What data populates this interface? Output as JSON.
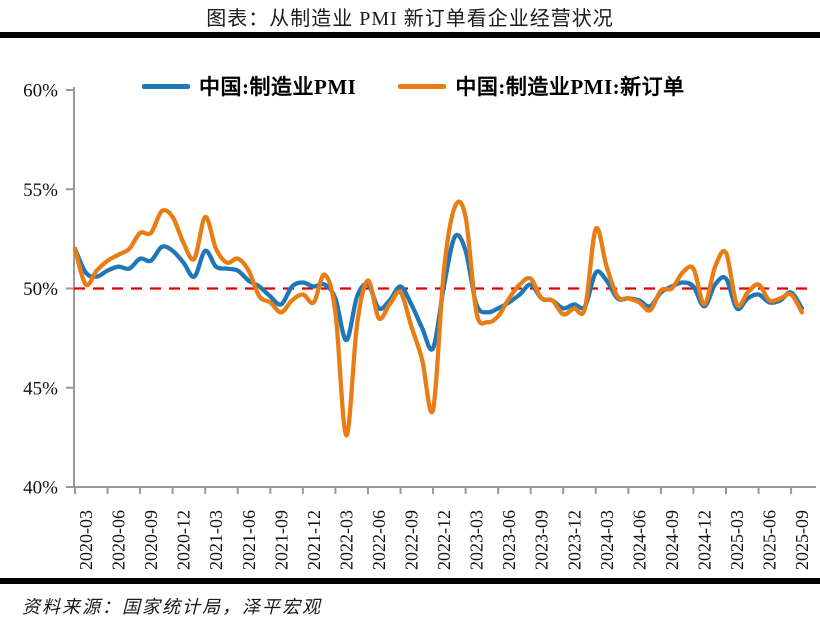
{
  "header": {
    "title": "图表：从制造业 PMI 新订单看企业经营状况"
  },
  "footer": {
    "source": "资料来源：国家统计局，泽平宏观"
  },
  "colors": {
    "pmi_blue": "#1F77B8",
    "new_orders_orange": "#E87D16",
    "reference_red": "#E00000",
    "axis_gray": "#999999",
    "rule_black": "#000000"
  },
  "chart_data": {
    "type": "line",
    "title": "图表：从制造业 PMI 新订单看企业经营状况",
    "xlabel": "",
    "ylabel": "",
    "ylim": [
      40,
      60
    ],
    "y_ticks": [
      {
        "value": 60,
        "label": "60%"
      },
      {
        "value": 55,
        "label": "55%"
      },
      {
        "value": 50,
        "label": "50%"
      },
      {
        "value": 45,
        "label": "45%"
      },
      {
        "value": 40,
        "label": "40%"
      }
    ],
    "x_tick_labels": [
      "2020-03",
      "2020-06",
      "2020-09",
      "2020-12",
      "2021-03",
      "2021-06",
      "2021-09",
      "2021-12",
      "2022-03",
      "2022-06",
      "2022-09",
      "2022-12",
      "2023-03",
      "2023-06",
      "2023-09",
      "2023-12",
      "2024-03",
      "2024-06",
      "2024-09",
      "2024-12",
      "2025-03",
      "2025-06",
      "2025-09"
    ],
    "x": [
      "2020-03",
      "2020-04",
      "2020-05",
      "2020-06",
      "2020-07",
      "2020-08",
      "2020-09",
      "2020-10",
      "2020-11",
      "2020-12",
      "2021-01",
      "2021-02",
      "2021-03",
      "2021-04",
      "2021-05",
      "2021-06",
      "2021-07",
      "2021-08",
      "2021-09",
      "2021-10",
      "2021-11",
      "2021-12",
      "2022-01",
      "2022-02",
      "2022-03",
      "2022-04",
      "2022-05",
      "2022-06",
      "2022-07",
      "2022-08",
      "2022-09",
      "2022-10",
      "2022-11",
      "2022-12",
      "2023-01",
      "2023-02",
      "2023-03",
      "2023-04",
      "2023-05",
      "2023-06",
      "2023-07",
      "2023-08",
      "2023-09",
      "2023-10",
      "2023-11",
      "2023-12",
      "2024-01",
      "2024-02",
      "2024-03",
      "2024-04",
      "2024-05",
      "2024-06",
      "2024-07",
      "2024-08",
      "2024-09",
      "2024-10",
      "2024-11",
      "2024-12",
      "2025-01",
      "2025-02",
      "2025-03",
      "2025-04",
      "2025-05",
      "2025-06",
      "2025-07",
      "2025-08",
      "2025-09",
      "2025-10"
    ],
    "reference_line": {
      "value": 50,
      "style": "dashed",
      "color": "#E00000"
    },
    "legend_position": "top",
    "grid": false,
    "series": [
      {
        "name": "中国:制造业PMI",
        "color": "#1F77B8",
        "values": [
          52.0,
          50.8,
          50.6,
          50.9,
          51.1,
          51.0,
          51.5,
          51.4,
          52.1,
          51.9,
          51.3,
          50.6,
          51.9,
          51.1,
          51.0,
          50.9,
          50.4,
          50.1,
          49.6,
          49.2,
          50.1,
          50.3,
          50.1,
          50.2,
          49.5,
          47.4,
          49.6,
          50.2,
          49.0,
          49.4,
          50.1,
          49.2,
          48.0,
          47.0,
          50.1,
          52.6,
          51.9,
          49.2,
          48.8,
          49.0,
          49.3,
          49.7,
          50.2,
          49.5,
          49.4,
          49.0,
          49.2,
          49.1,
          50.8,
          50.4,
          49.5,
          49.5,
          49.4,
          49.1,
          49.8,
          50.1,
          50.3,
          50.1,
          49.1,
          50.2,
          50.5,
          49.0,
          49.5,
          49.7,
          49.3,
          49.4,
          49.8,
          49.0
        ]
      },
      {
        "name": "中国:制造业PMI:新订单",
        "color": "#E87D16",
        "values": [
          52.0,
          50.2,
          50.9,
          51.4,
          51.7,
          52.0,
          52.8,
          52.8,
          53.9,
          53.6,
          52.3,
          51.5,
          53.6,
          52.0,
          51.3,
          51.5,
          50.9,
          49.6,
          49.3,
          48.8,
          49.4,
          49.7,
          49.3,
          50.7,
          48.8,
          42.6,
          48.2,
          50.4,
          48.5,
          49.2,
          49.8,
          48.1,
          46.4,
          43.9,
          50.9,
          54.1,
          53.6,
          48.8,
          48.3,
          48.6,
          49.5,
          50.2,
          50.5,
          49.5,
          49.4,
          48.7,
          49.0,
          49.0,
          53.0,
          51.1,
          49.6,
          49.5,
          49.3,
          48.9,
          49.9,
          50.0,
          50.8,
          51.0,
          49.2,
          51.1,
          51.8,
          49.2,
          49.8,
          50.2,
          49.4,
          49.5,
          49.7,
          48.8
        ]
      }
    ]
  }
}
